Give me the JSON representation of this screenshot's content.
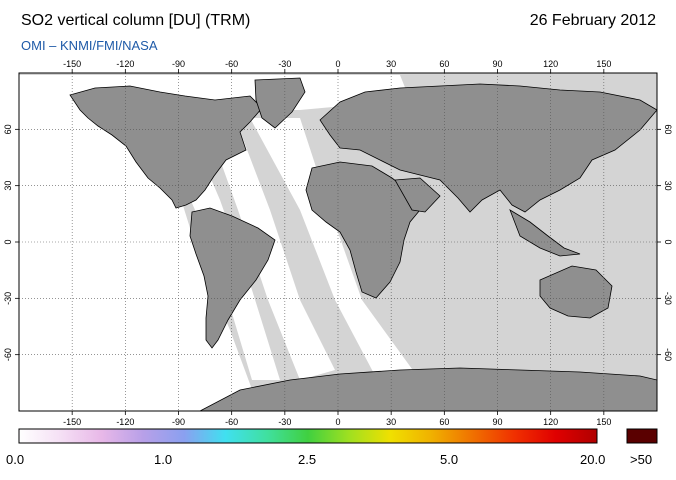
{
  "header": {
    "title": "SO2 vertical column [DU] (TRM)",
    "date": "26 February 2012",
    "credit": "OMI  –  KNMI/FMI/NASA"
  },
  "map": {
    "lon_ticks": [
      "-150",
      "-120",
      "-90",
      "-60",
      "-30",
      "0",
      "30",
      "60",
      "90",
      "120",
      "150"
    ],
    "lat_ticks": [
      "60",
      "30",
      "0",
      "-30",
      "-60"
    ],
    "lon_range": [
      -180,
      180
    ],
    "lat_range": [
      -90,
      90
    ],
    "colors": {
      "background": "#d4d4d4",
      "land": "#8f8f8f",
      "data_swath": "#ffffff",
      "coast": "#000000",
      "grid": "#555555"
    }
  },
  "colorbar": {
    "labels": [
      "0.0",
      "1.0",
      "2.5",
      "5.0",
      "20.0",
      ">50"
    ],
    "colors": [
      "#ffffff",
      "#f5e0f5",
      "#e8b8e8",
      "#b8a0e8",
      "#8aa0f0",
      "#40e0f0",
      "#40e0a0",
      "#40d040",
      "#a0e020",
      "#f0e000",
      "#f0b000",
      "#f07000",
      "#f03000",
      "#e00000",
      "#b00000"
    ],
    "over_color": "#5a0000"
  }
}
